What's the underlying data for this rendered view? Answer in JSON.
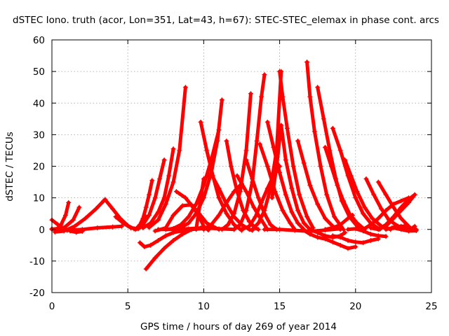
{
  "chart_data": {
    "type": "scatter",
    "title": "dSTEC Iono. truth (acor, Lon=351, Lat=43, h=67): STEC-STEC_elemax in phase cont. arcs",
    "xlabel": "GPS time / hours of day 269 of year 2014",
    "ylabel": "dSTEC  / TECUs",
    "xlim": [
      0,
      25
    ],
    "ylim": [
      -20,
      60
    ],
    "xticks": [
      0,
      5,
      10,
      15,
      20,
      25
    ],
    "yticks": [
      -20,
      -10,
      0,
      10,
      20,
      30,
      40,
      50,
      60
    ],
    "grid": true,
    "marker": "+",
    "color": "#ff0000",
    "series": [
      {
        "x": [
          0.0,
          0.4,
          0.8,
          1.2,
          1.6,
          2.0
        ],
        "y": [
          3.0,
          1.5,
          0.3,
          -0.5,
          -0.9,
          -0.6
        ]
      },
      {
        "x": [
          0.0,
          0.3,
          0.6,
          0.9,
          1.1
        ],
        "y": [
          0.2,
          0.0,
          1.5,
          4.5,
          8.5
        ]
      },
      {
        "x": [
          0.0,
          0.8,
          1.4,
          1.8
        ],
        "y": [
          0.0,
          0.5,
          3.0,
          7.0
        ]
      },
      {
        "x": [
          0.2,
          0.8,
          1.5,
          2.2,
          2.9,
          3.4
        ],
        "y": [
          -0.8,
          -0.5,
          1.0,
          3.5,
          6.5,
          9.0
        ]
      },
      {
        "x": [
          0.2,
          1.0,
          2.0,
          3.0,
          4.0,
          4.6
        ],
        "y": [
          0.0,
          -0.3,
          0.0,
          0.5,
          0.8,
          1.0
        ]
      },
      {
        "x": [
          3.5,
          4.0,
          4.5,
          5.0,
          5.4
        ],
        "y": [
          9.5,
          6.5,
          3.5,
          1.2,
          0.2
        ]
      },
      {
        "x": [
          4.2,
          4.7,
          5.2,
          5.7,
          6.0,
          6.2
        ],
        "y": [
          4.0,
          2.0,
          0.5,
          0.2,
          1.5,
          4.0
        ]
      },
      {
        "x": [
          5.5,
          5.8,
          6.0,
          6.2,
          6.4,
          6.6
        ],
        "y": [
          0.0,
          1.5,
          3.5,
          7.0,
          11.0,
          15.5
        ]
      },
      {
        "x": [
          5.6,
          6.0,
          6.4,
          6.8,
          7.1,
          7.4
        ],
        "y": [
          0.2,
          1.5,
          4.5,
          10.0,
          16.0,
          22.0
        ]
      },
      {
        "x": [
          6.0,
          6.5,
          7.0,
          7.4,
          7.7,
          8.0
        ],
        "y": [
          0.5,
          2.0,
          5.5,
          10.0,
          17.0,
          25.5
        ]
      },
      {
        "x": [
          6.4,
          7.0,
          7.5,
          8.0,
          8.4,
          8.8
        ],
        "y": [
          0.6,
          3.0,
          8.0,
          15.0,
          25.0,
          45.0
        ]
      },
      {
        "x": [
          5.8,
          6.1,
          6.5,
          7.0,
          7.5,
          8.0,
          8.5,
          9.2,
          10.0
        ],
        "y": [
          -4.2,
          -5.5,
          -5.0,
          -3.5,
          -2.0,
          -1.0,
          -0.5,
          0.0,
          0.3
        ]
      },
      {
        "x": [
          6.2,
          6.8,
          7.4,
          8.0,
          8.6,
          9.2,
          9.8,
          10.3
        ],
        "y": [
          -12.5,
          -9.0,
          -6.0,
          -3.5,
          -1.5,
          0.0,
          0.5,
          0.4
        ]
      },
      {
        "x": [
          6.8,
          7.5,
          8.0,
          8.6,
          9.2,
          9.7,
          10.2,
          11.0
        ],
        "y": [
          -0.5,
          0.5,
          4.5,
          7.5,
          7.8,
          5.0,
          2.0,
          0.0
        ]
      },
      {
        "x": [
          7.5,
          8.0,
          8.5,
          9.0,
          9.5,
          10.0,
          10.5,
          11.0
        ],
        "y": [
          0.0,
          0.3,
          1.5,
          4.0,
          8.0,
          14.0,
          22.0,
          31.5
        ]
      },
      {
        "x": [
          8.0,
          8.5,
          9.0,
          9.5,
          10.0,
          10.5,
          10.9,
          11.2
        ],
        "y": [
          0.0,
          0.6,
          2.0,
          5.0,
          10.0,
          18.0,
          28.0,
          41.0
        ]
      },
      {
        "x": [
          8.2,
          8.8,
          9.3,
          9.7,
          10.0,
          10.3
        ],
        "y": [
          12.0,
          10.0,
          7.0,
          4.0,
          1.0,
          -0.2
        ]
      },
      {
        "x": [
          7.0,
          8.0,
          9.0,
          10.0,
          11.0,
          12.0
        ],
        "y": [
          0.0,
          0.0,
          0.2,
          0.5,
          0.2,
          0.0
        ]
      },
      {
        "x": [
          9.8,
          10.2,
          10.6,
          11.0,
          11.5,
          12.0,
          12.5
        ],
        "y": [
          34.0,
          25.0,
          17.0,
          10.0,
          5.0,
          1.5,
          -0.3
        ]
      },
      {
        "x": [
          9.5,
          10.0,
          10.5,
          11.0,
          11.5,
          12.0,
          12.5,
          13.0,
          13.2
        ],
        "y": [
          0.0,
          16.0,
          17.5,
          13.0,
          8.0,
          4.0,
          1.5,
          0.0,
          -0.3
        ]
      },
      {
        "x": [
          10.0,
          10.5,
          11.0,
          11.5,
          12.0,
          12.5
        ],
        "y": [
          0.0,
          1.5,
          4.5,
          8.5,
          12.0,
          14.5
        ]
      },
      {
        "x": [
          11.2,
          11.6,
          12.0,
          12.4,
          12.8,
          13.1
        ],
        "y": [
          0.0,
          1.5,
          5.0,
          12.0,
          25.0,
          43.0
        ]
      },
      {
        "x": [
          11.5,
          11.8,
          12.2,
          12.6,
          13.0,
          13.4,
          13.6
        ],
        "y": [
          28.0,
          20.0,
          12.0,
          6.0,
          2.5,
          0.5,
          0.0
        ]
      },
      {
        "x": [
          12.0,
          12.4,
          12.8,
          13.2,
          13.5,
          13.8,
          14.0
        ],
        "y": [
          0.0,
          1.5,
          6.0,
          15.0,
          28.0,
          42.0,
          49.0
        ]
      },
      {
        "x": [
          12.2,
          12.8,
          13.3,
          13.8,
          14.2
        ],
        "y": [
          17.0,
          12.0,
          7.0,
          3.0,
          0.0
        ]
      },
      {
        "x": [
          12.5,
          13.0,
          13.4,
          13.8,
          14.2,
          14.6,
          15.0
        ],
        "y": [
          0.0,
          1.0,
          4.0,
          8.5,
          13.0,
          17.0,
          20.0
        ]
      },
      {
        "x": [
          12.8,
          13.2,
          13.6,
          14.0,
          14.4,
          14.8
        ],
        "y": [
          22.0,
          16.0,
          10.0,
          5.0,
          1.5,
          0.0
        ]
      },
      {
        "x": [
          13.2,
          13.6,
          14.0,
          14.4,
          14.8,
          15.1
        ],
        "y": [
          0.0,
          2.0,
          6.0,
          13.0,
          25.0,
          50.0
        ]
      },
      {
        "x": [
          13.7,
          14.2,
          14.7,
          15.2,
          15.7,
          16.0
        ],
        "y": [
          27.0,
          20.0,
          12.0,
          6.0,
          2.0,
          0.0
        ]
      },
      {
        "x": [
          14.2,
          14.6,
          15.0,
          15.4,
          15.8,
          16.2,
          16.6
        ],
        "y": [
          34.0,
          26.0,
          18.0,
          11.0,
          5.5,
          2.0,
          0.0
        ]
      },
      {
        "x": [
          14.5,
          14.8,
          15.1,
          15.4,
          15.8,
          16.2,
          16.6,
          17.0
        ],
        "y": [
          10.0,
          20.0,
          33.0,
          22.0,
          13.0,
          6.0,
          2.0,
          0.0
        ]
      },
      {
        "x": [
          15.0,
          15.2,
          15.5,
          15.9,
          16.3,
          16.8,
          17.2
        ],
        "y": [
          50.0,
          42.0,
          32.0,
          20.0,
          11.0,
          4.0,
          0.5
        ]
      },
      {
        "x": [
          14.0,
          15.0,
          16.0,
          17.0,
          18.0,
          19.0
        ],
        "y": [
          0.0,
          0.0,
          -0.3,
          -0.6,
          -0.2,
          0.2
        ]
      },
      {
        "x": [
          16.2,
          16.6,
          17.0,
          17.5,
          18.0,
          18.5,
          19.0
        ],
        "y": [
          28.0,
          21.0,
          14.0,
          8.0,
          3.5,
          1.0,
          0.0
        ]
      },
      {
        "x": [
          16.8,
          17.0,
          17.3,
          17.7,
          18.1,
          18.6,
          19.2
        ],
        "y": [
          53.0,
          42.0,
          31.0,
          20.0,
          11.0,
          4.0,
          0.0
        ]
      },
      {
        "x": [
          17.5,
          17.9,
          18.3,
          18.7,
          19.1,
          19.6,
          20.2
        ],
        "y": [
          45.0,
          35.0,
          25.0,
          16.0,
          9.0,
          4.0,
          0.5
        ]
      },
      {
        "x": [
          18.0,
          18.4,
          18.8,
          19.2,
          19.6,
          20.1,
          20.6
        ],
        "y": [
          26.0,
          20.0,
          14.0,
          9.0,
          5.0,
          2.0,
          0.0
        ]
      },
      {
        "x": [
          18.5,
          19.0,
          19.5,
          20.0,
          20.5,
          21.0,
          21.6
        ],
        "y": [
          32.0,
          25.0,
          17.0,
          10.0,
          5.0,
          2.0,
          0.0
        ]
      },
      {
        "x": [
          19.3,
          19.7,
          20.1,
          20.6,
          21.1,
          21.7,
          22.3
        ],
        "y": [
          22.0,
          17.0,
          12.0,
          7.0,
          3.5,
          1.0,
          0.0
        ]
      },
      {
        "x": [
          20.7,
          21.2,
          21.7,
          22.2,
          22.8,
          23.4
        ],
        "y": [
          16.0,
          11.0,
          6.5,
          3.0,
          1.0,
          0.0
        ]
      },
      {
        "x": [
          16.5,
          17.0,
          17.5,
          18.0,
          18.5,
          19.0,
          19.5,
          20.0
        ],
        "y": [
          0.0,
          -1.5,
          -2.5,
          -3.0,
          -4.0,
          -5.0,
          -6.0,
          -5.5
        ]
      },
      {
        "x": [
          17.0,
          17.5,
          18.0,
          18.5,
          19.0,
          19.3
        ],
        "y": [
          0.0,
          -1.0,
          -2.0,
          -2.5,
          -2.0,
          -1.0
        ]
      },
      {
        "x": [
          18.5,
          19.0,
          19.5,
          20.0,
          20.5,
          21.0,
          21.5
        ],
        "y": [
          -2.0,
          -2.5,
          -3.5,
          -4.0,
          -4.2,
          -3.5,
          -3.0
        ]
      },
      {
        "x": [
          18.0,
          18.5,
          19.0,
          19.5,
          19.8
        ],
        "y": [
          0.0,
          0.5,
          1.5,
          3.5,
          4.5
        ]
      },
      {
        "x": [
          19.5,
          20.0,
          20.5,
          21.0,
          21.5,
          22.0
        ],
        "y": [
          0.0,
          0.2,
          -0.5,
          -1.5,
          -2.0,
          -2.2
        ]
      },
      {
        "x": [
          20.5,
          21.0,
          21.5,
          22.0,
          22.5,
          23.0,
          23.5
        ],
        "y": [
          0.0,
          1.5,
          3.5,
          6.0,
          8.0,
          9.0,
          10.0
        ]
      },
      {
        "x": [
          21.0,
          21.5,
          22.0,
          22.5,
          23.0,
          23.5,
          23.9
        ],
        "y": [
          0.5,
          0.0,
          1.0,
          3.5,
          6.0,
          8.5,
          11.0
        ]
      },
      {
        "x": [
          21.5,
          22.0,
          22.5,
          23.0,
          23.5,
          23.9
        ],
        "y": [
          0.0,
          1.5,
          4.0,
          7.0,
          9.5,
          11.0
        ]
      },
      {
        "x": [
          22.0,
          22.4,
          22.8,
          23.2,
          23.6,
          24.0
        ],
        "y": [
          0.0,
          0.5,
          1.0,
          1.0,
          0.5,
          0.0
        ]
      },
      {
        "x": [
          22.5,
          23.0,
          23.5,
          24.0
        ],
        "y": [
          0.5,
          0.0,
          -0.5,
          -0.4
        ]
      },
      {
        "x": [
          21.5,
          22.0,
          22.5,
          23.0,
          23.5
        ],
        "y": [
          15.0,
          11.0,
          7.0,
          3.5,
          1.0
        ]
      },
      {
        "x": [
          23.0,
          23.3,
          23.6,
          23.9
        ],
        "y": [
          1.0,
          0.2,
          0.0,
          1.0
        ]
      }
    ]
  }
}
